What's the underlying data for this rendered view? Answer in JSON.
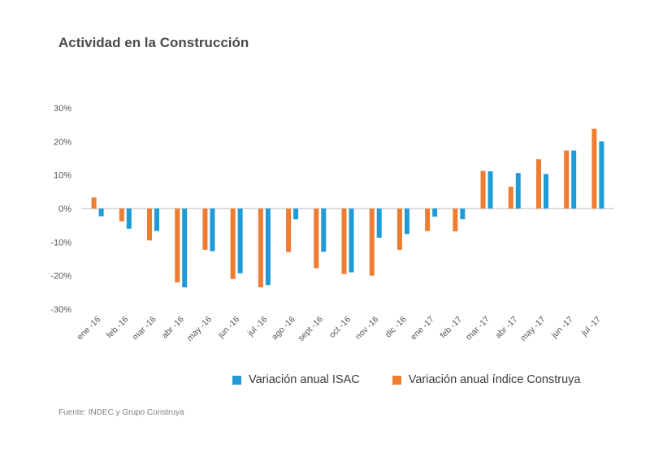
{
  "title": "Actividad en la Construcción",
  "source": "Fuente: INDEC y Grupo Construya",
  "colors": {
    "isac": "#1f9bd6",
    "construya": "#ee7d31",
    "axis_text": "#555555",
    "zero_line": "#bbbbbb"
  },
  "legend": {
    "isac_label": "Variación anual ISAC",
    "construya_label": "Variación anual índice Construya"
  },
  "chart_data": {
    "type": "bar",
    "categories": [
      "ene -16",
      "feb -16",
      "mar -16",
      "abr -16",
      "may -16",
      "jun -16",
      "jul -16",
      "ago -16",
      "sept -16",
      "oct -16",
      "nov -16",
      "dic -16",
      "ene -17",
      "feb -17",
      "mar -17",
      "abr -17",
      "may -17",
      "jun -17",
      "jul -17"
    ],
    "series": [
      {
        "name": "Variación anual índice Construya",
        "color": "#ee7d31",
        "values": [
          3.3,
          -3.8,
          -9.5,
          -22.0,
          -12.3,
          -21.0,
          -23.5,
          -13.0,
          -17.8,
          -19.5,
          -20.0,
          -12.3,
          -6.7,
          -6.8,
          11.2,
          6.5,
          14.7,
          17.3,
          23.8
        ]
      },
      {
        "name": "Variación anual ISAC",
        "color": "#1f9bd6",
        "values": [
          -2.3,
          -6.0,
          -6.7,
          -23.5,
          -12.7,
          -19.3,
          -22.8,
          -3.2,
          -12.9,
          -19.0,
          -8.7,
          -7.6,
          -2.4,
          -3.2,
          11.1,
          10.6,
          10.3,
          17.3,
          20.0
        ]
      }
    ],
    "yticks": [
      "30%",
      "20%",
      "10%",
      "0%",
      "-10%",
      "-20%",
      "-30%"
    ],
    "ytick_values": [
      30,
      20,
      10,
      0,
      -10,
      -20,
      -30
    ],
    "ylim": [
      -30,
      30
    ],
    "grid": false,
    "legend_position": "bottom"
  }
}
